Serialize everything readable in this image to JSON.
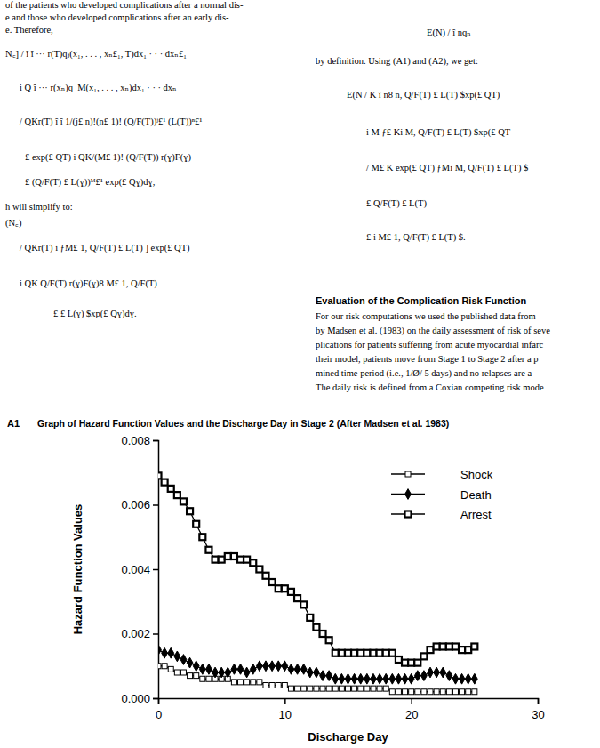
{
  "page": {
    "left_column": [
      "of the patients who developed complications after a normal dis-",
      "e and those who developed complications after an early dis-",
      "e. Therefore,",
      "N꜀] /  î  î  ···  r(T)qⱼ(x₁, . . . , xₙ£₁, T)dx₁ · · · dxₙ£₁",
      "i  Q î  ···  r(xₙ)q_M(x₁, . . . , xₙ)dx₁ · · · dxₙ",
      "/ QKr(T) î î  1/(j£ n)!(n£ 1)!  (Q/F(T))ʲ£¹ (L(T))ⁿ£¹",
      "£ exp(£ QT) i  QK/(M£ 1)!  (Q/F(T))  r(ɣ)F(ɣ)",
      "£  (Q/F(T) £ L(ɣ))ᴹ£¹ exp(£ Qɣ)dɣ,",
      "h will simplify to:",
      "(N꜀)",
      "/ QKr(T) i ƒM£ 1,  Q/F(T) £ L(T)  ] exp(£ QT)",
      "i  QK Q/F(T)  r(ɣ)F(ɣ)8  M£ 1,  Q/F(T)",
      "£  £ L(ɣ)  $xp(£ Qɣ)dɣ."
    ],
    "right_column": [
      "E(N) /  î  nqₙ",
      "by definition. Using (A1) and (A2), we get:",
      "E(N /  K î n8  n,  Q/F(T) £ L(T)  $xp(£ QT)",
      "i  M ƒ£ Ki  M,  Q/F(T) £ L(T)  $xp(£ QT",
      "/ M£ K exp(£ QT) ƒMi  M,  Q/F(T) £ L(T)  $",
      "£  Q/F(T) £ L(T)",
      "£ i  M£ 1,  Q/F(T) £ L(T)  $."
    ],
    "section_heading": "Evaluation of the Complication Risk Function",
    "section_paragraph": [
      "For our risk computations we used the published data from",
      "by Madsen et al. (1983) on the daily assessment of risk of seve",
      "plications for patients suffering from acute myocardial infarc",
      "their model, patients move from Stage 1 to Stage 2 after a p",
      "mined time period (i.e., 1/Ø/ 5 days) and no relapses are a",
      "The daily risk is defined from a Coxian competing risk mode"
    ],
    "figure_label": "A1"
  },
  "chart_data": {
    "type": "line",
    "title": "Graph of Hazard Function Values and the Discharge Day in Stage 2 (After Madsen et al. 1983)",
    "x_label": "Discharge Day",
    "y_label": "Hazard Function Values",
    "x": [
      0,
      0.5,
      1,
      1.5,
      2,
      2.5,
      3,
      3.5,
      4,
      4.5,
      5,
      5.5,
      6,
      6.5,
      7,
      7.5,
      8,
      8.5,
      9,
      9.5,
      10,
      10.5,
      11,
      11.5,
      12,
      12.5,
      13,
      13.5,
      14,
      14.5,
      15,
      15.5,
      16,
      16.5,
      17,
      17.5,
      18,
      18.5,
      19,
      19.5,
      20,
      20.5,
      21,
      21.5,
      22,
      22.5,
      23,
      23.5,
      24,
      24.5,
      25
    ],
    "series": [
      {
        "name": "Shock",
        "color": "#000000",
        "marker": "square-open",
        "values": [
          0.001,
          0.001,
          0.0009,
          0.0008,
          0.0008,
          0.0007,
          0.0007,
          0.0006,
          0.0006,
          0.0006,
          0.0006,
          0.0006,
          0.0005,
          0.0005,
          0.0005,
          0.0005,
          0.0005,
          0.0004,
          0.0004,
          0.0004,
          0.0004,
          0.0003,
          0.0003,
          0.0003,
          0.0003,
          0.0003,
          0.0003,
          0.0003,
          0.0003,
          0.0003,
          0.0003,
          0.0003,
          0.0003,
          0.0003,
          0.0003,
          0.0003,
          0.0003,
          0.0002,
          0.0002,
          0.0002,
          0.0002,
          0.0002,
          0.0002,
          0.0002,
          0.0002,
          0.0002,
          0.0002,
          0.0002,
          0.0002,
          0.0002,
          0.0002
        ]
      },
      {
        "name": "Death",
        "color": "#000000",
        "marker": "diamond",
        "values": [
          0.0015,
          0.0014,
          0.0014,
          0.0013,
          0.0012,
          0.0011,
          0.001,
          0.0009,
          0.0009,
          0.0008,
          0.0008,
          0.0008,
          0.0009,
          0.0009,
          0.0008,
          0.0009,
          0.001,
          0.001,
          0.001,
          0.001,
          0.001,
          0.0009,
          0.0009,
          0.0009,
          0.0008,
          0.0008,
          0.0007,
          0.0007,
          0.0006,
          0.0006,
          0.0006,
          0.0006,
          0.0006,
          0.0006,
          0.0006,
          0.0006,
          0.0006,
          0.0006,
          0.0006,
          0.0006,
          0.0006,
          0.0007,
          0.0007,
          0.0008,
          0.0008,
          0.0008,
          0.0007,
          0.0006,
          0.0006,
          0.0006,
          0.0006
        ]
      },
      {
        "name": "Arrest",
        "color": "#000000",
        "marker": "square",
        "values": [
          0.0069,
          0.0067,
          0.0065,
          0.0063,
          0.0061,
          0.0058,
          0.0054,
          0.005,
          0.0046,
          0.0043,
          0.0043,
          0.0044,
          0.0044,
          0.0043,
          0.0043,
          0.0042,
          0.004,
          0.0038,
          0.0036,
          0.0034,
          0.0034,
          0.0033,
          0.0031,
          0.0029,
          0.0025,
          0.0022,
          0.002,
          0.0018,
          0.0014,
          0.0014,
          0.0014,
          0.0014,
          0.0014,
          0.0014,
          0.0014,
          0.0014,
          0.0014,
          0.0014,
          0.0012,
          0.0011,
          0.0011,
          0.0011,
          0.0013,
          0.0015,
          0.0016,
          0.0016,
          0.0016,
          0.0016,
          0.0015,
          0.0015,
          0.0016
        ]
      }
    ],
    "xlim": [
      0,
      30
    ],
    "xticks": [
      0,
      10,
      20,
      30
    ],
    "ylim": [
      0,
      0.008
    ],
    "yticks": [
      {
        "value": 0,
        "label": "0.000"
      },
      {
        "value": 0.002,
        "label": "0.002"
      },
      {
        "value": 0.004,
        "label": "0.004"
      },
      {
        "value": 0.006,
        "label": "0.006"
      },
      {
        "value": 0.008,
        "label": "0.008"
      }
    ],
    "grid": false,
    "legend": "upper right"
  }
}
